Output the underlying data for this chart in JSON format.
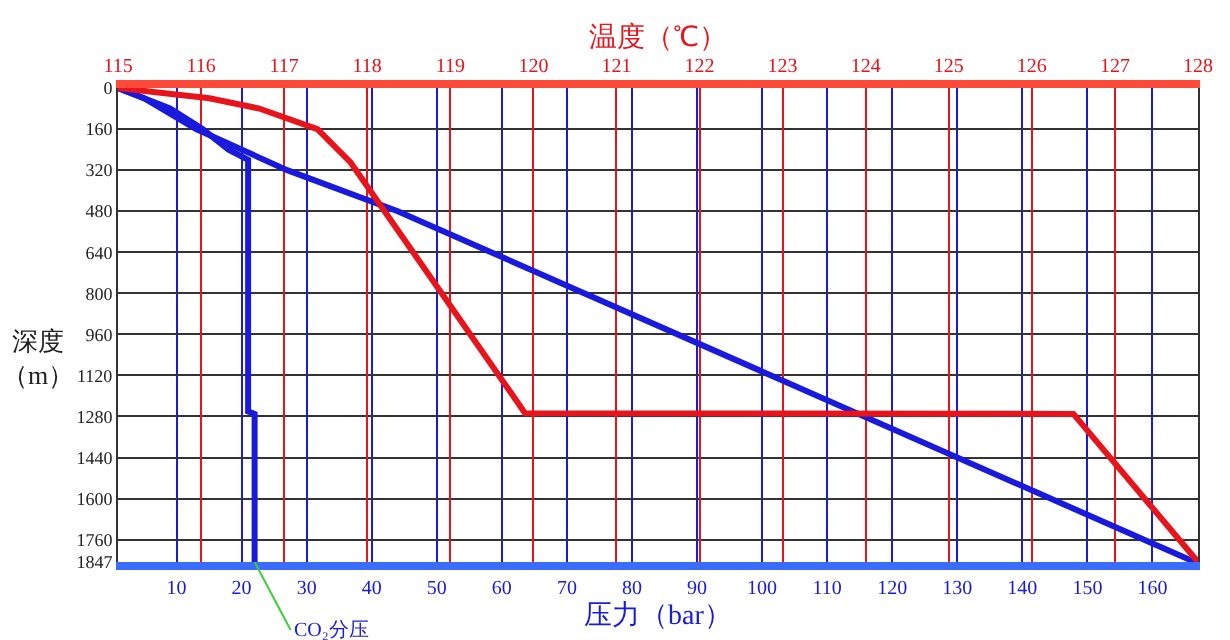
{
  "chart_data": {
    "type": "line",
    "xlabel": "压力（bar）",
    "x2label": "温度（℃）",
    "ylabel": "深度（m）",
    "xlim": [
      1,
      167
    ],
    "xticks": [
      10,
      20,
      30,
      40,
      50,
      60,
      70,
      80,
      90,
      100,
      110,
      120,
      130,
      140,
      150,
      160
    ],
    "x2lim": [
      115,
      128
    ],
    "x2ticks": [
      115,
      116,
      117,
      118,
      119,
      120,
      121,
      122,
      123,
      124,
      125,
      126,
      127,
      128
    ],
    "ylim": [
      1847,
      0
    ],
    "yticks": [
      0,
      160,
      320,
      480,
      640,
      800,
      960,
      1120,
      1280,
      1440,
      1600,
      1760,
      1847
    ],
    "grid": true,
    "legend": false,
    "marker": "none",
    "line_style": "solid",
    "series": [
      {
        "color": "#e8141c",
        "axis": "x2",
        "x": [
          115,
          116.1,
          116.7,
          117.4,
          117.8,
          119.9,
          126.5,
          128
        ],
        "values": [
          0,
          40,
          80,
          160,
          290,
          1267,
          1270,
          1847
        ]
      },
      {
        "color": "#1a1adc",
        "x": [
          1,
          5,
          13,
          27,
          44,
          166.5
        ],
        "values": [
          0,
          40,
          160,
          320,
          480,
          1847
        ]
      },
      {
        "name": "CO₂分压",
        "color": "#1a1adc",
        "x": [
          1,
          9,
          14,
          18,
          21,
          21,
          22,
          22
        ],
        "values": [
          0,
          80,
          160,
          240,
          280,
          1260,
          1270,
          1847
        ]
      }
    ]
  }
}
